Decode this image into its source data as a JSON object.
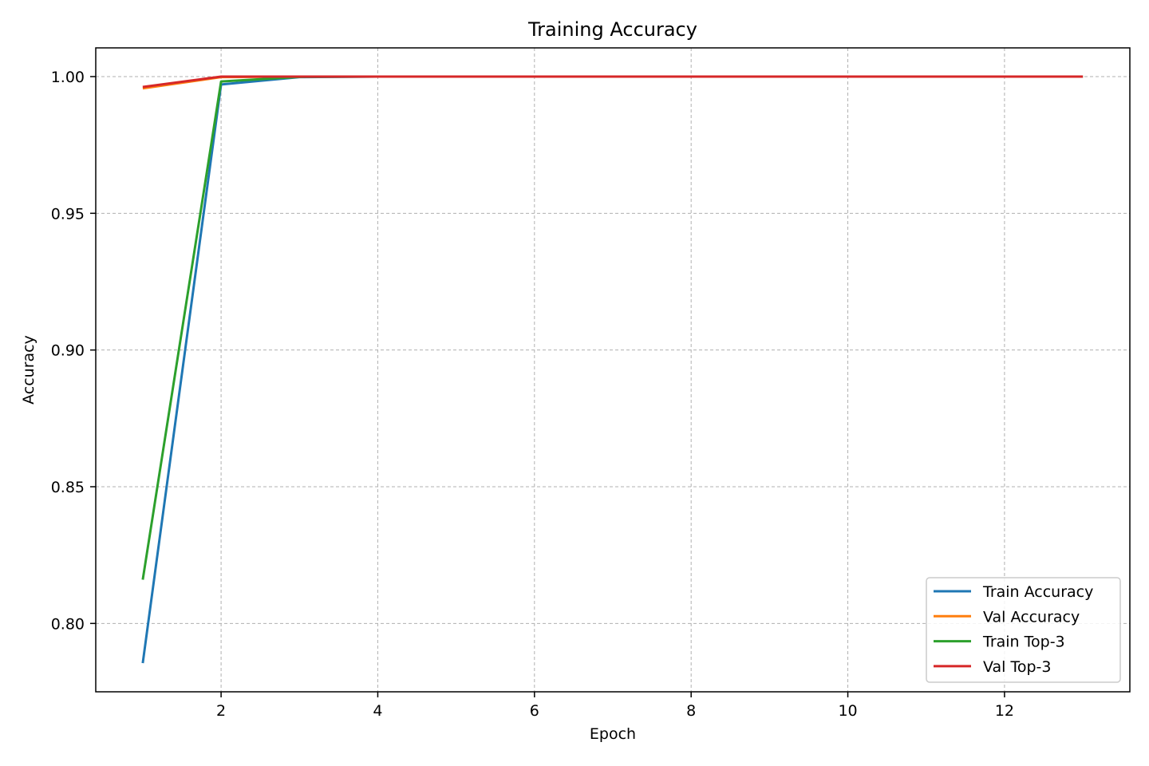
{
  "chart_data": {
    "type": "line",
    "title": "Training Accuracy",
    "xlabel": "Epoch",
    "ylabel": "Accuracy",
    "xlim": [
      0.4,
      13.6
    ],
    "ylim": [
      0.775,
      1.0105
    ],
    "xticks": [
      2,
      4,
      6,
      8,
      10,
      12
    ],
    "yticks": [
      0.8,
      0.85,
      0.9,
      0.95,
      1.0
    ],
    "ytick_format_decimals": 2,
    "grid": true,
    "legend_position": "lower-right",
    "x": [
      1,
      2,
      3,
      4,
      5,
      6,
      7,
      8,
      9,
      10,
      11,
      12,
      13
    ],
    "series": [
      {
        "name": "Train Accuracy",
        "color": "#1f77b4",
        "values": [
          0.7855,
          0.9971,
          0.9998,
          1.0,
          1.0,
          1.0,
          1.0,
          1.0,
          1.0,
          1.0,
          1.0,
          1.0,
          1.0
        ]
      },
      {
        "name": "Val Accuracy",
        "color": "#ff7f0e",
        "values": [
          0.9957,
          0.9998,
          1.0,
          1.0,
          1.0,
          1.0,
          1.0,
          1.0,
          1.0,
          1.0,
          1.0,
          1.0,
          1.0
        ]
      },
      {
        "name": "Train Top-3",
        "color": "#2ca02c",
        "values": [
          0.816,
          0.9982,
          0.9999,
          1.0,
          1.0,
          1.0,
          1.0,
          1.0,
          1.0,
          1.0,
          1.0,
          1.0,
          1.0
        ]
      },
      {
        "name": "Val Top-3",
        "color": "#d62728",
        "values": [
          0.9962,
          1.0,
          1.0,
          1.0,
          1.0,
          1.0,
          1.0,
          1.0,
          1.0,
          1.0,
          1.0,
          1.0,
          1.0
        ]
      }
    ]
  }
}
